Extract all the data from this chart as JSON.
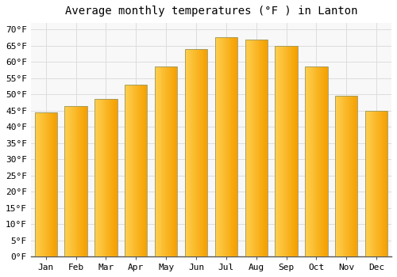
{
  "title": "Average monthly temperatures (°F ) in Lanton",
  "months": [
    "Jan",
    "Feb",
    "Mar",
    "Apr",
    "May",
    "Jun",
    "Jul",
    "Aug",
    "Sep",
    "Oct",
    "Nov",
    "Dec"
  ],
  "values": [
    44.5,
    46.5,
    48.5,
    53.0,
    58.5,
    64.0,
    67.5,
    67.0,
    65.0,
    58.5,
    49.5,
    45.0
  ],
  "bar_color_left": "#FFD050",
  "bar_color_right": "#F5A000",
  "bar_edge_color": "#888800",
  "yticks": [
    0,
    5,
    10,
    15,
    20,
    25,
    30,
    35,
    40,
    45,
    50,
    55,
    60,
    65,
    70
  ],
  "ylim": [
    0,
    72
  ],
  "background_color": "#ffffff",
  "plot_bg_color": "#f8f8f8",
  "grid_color": "#dddddd",
  "title_fontsize": 10,
  "tick_fontsize": 8,
  "bar_width": 0.75
}
